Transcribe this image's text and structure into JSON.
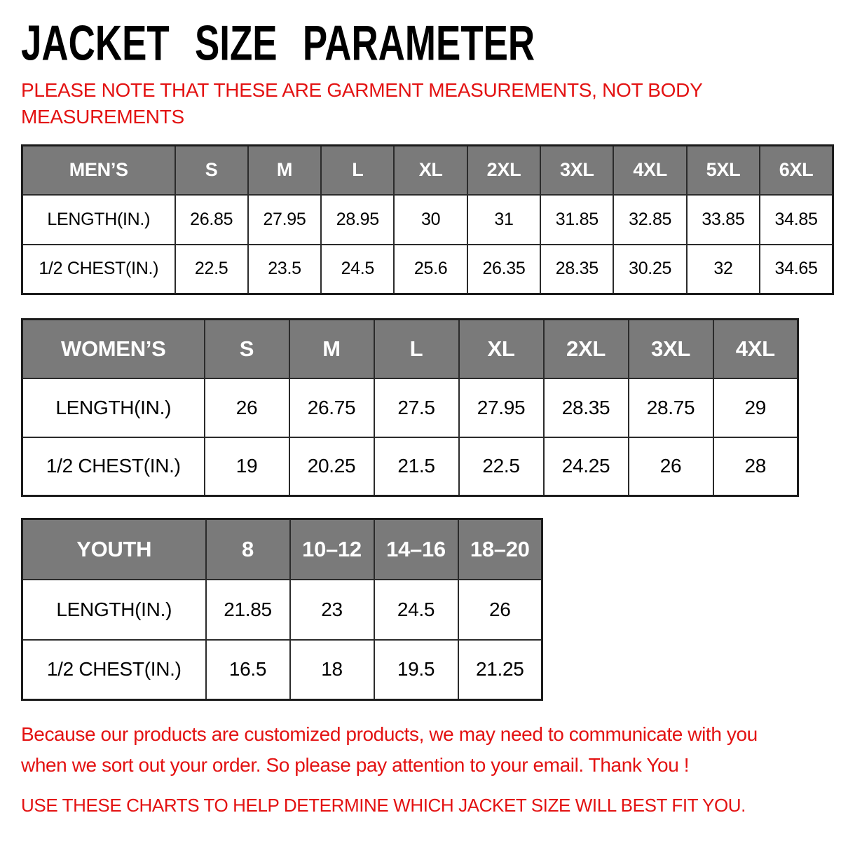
{
  "page": {
    "title": "JACKET SIZE PARAMETER"
  },
  "note": {
    "lines": [
      "PLEASE NOTE THAT THESE ARE GARMENT MEASUREMENTS, NOT BODY",
      "MEASUREMENTS"
    ]
  },
  "colors": {
    "header_bg": "#7a7a7a",
    "header_text": "#ffffff",
    "accent_red": "#e31212",
    "table_border": "#2b2b2b"
  },
  "tables": [
    {
      "key": "mens",
      "name": "MEN’S",
      "sizes": [
        "S",
        "M",
        "L",
        "XL",
        "2XL",
        "3XL",
        "4XL",
        "5XL",
        "6XL"
      ],
      "rows": [
        {
          "label": "LENGTH(IN.)",
          "values": [
            "26.85",
            "27.95",
            "28.95",
            "30",
            "31",
            "31.85",
            "32.85",
            "33.85",
            "34.85"
          ]
        },
        {
          "label": "1/2 CHEST(IN.)",
          "values": [
            "22.5",
            "23.5",
            "24.5",
            "25.6",
            "26.35",
            "28.35",
            "30.25",
            "32",
            "34.65"
          ]
        }
      ]
    },
    {
      "key": "womens",
      "name": "WOMEN’S",
      "sizes": [
        "S",
        "M",
        "L",
        "XL",
        "2XL",
        "3XL",
        "4XL"
      ],
      "rows": [
        {
          "label": "LENGTH(IN.)",
          "values": [
            "26",
            "26.75",
            "27.5",
            "27.95",
            "28.35",
            "28.75",
            "29"
          ]
        },
        {
          "label": "1/2 CHEST(IN.)",
          "values": [
            "19",
            "20.25",
            "21.5",
            "22.5",
            "24.25",
            "26",
            "28"
          ]
        }
      ]
    },
    {
      "key": "youth",
      "name": "YOUTH",
      "sizes": [
        "8",
        "10–12",
        "14–16",
        "18–20"
      ],
      "rows": [
        {
          "label": "LENGTH(IN.)",
          "values": [
            "21.85",
            "23",
            "24.5",
            "26"
          ]
        },
        {
          "label": "1/2 CHEST(IN.)",
          "values": [
            "16.5",
            "18",
            "19.5",
            "21.25"
          ]
        }
      ]
    }
  ],
  "footer": {
    "para_lines": [
      "Because our products are customized products, we may need to communicate with you",
      "when we sort out your order. So please pay attention to your email. Thank You !"
    ],
    "charts_line": "USE THESE CHARTS TO HELP DETERMINE WHICH JACKET SIZE WILL BEST FIT YOU."
  }
}
